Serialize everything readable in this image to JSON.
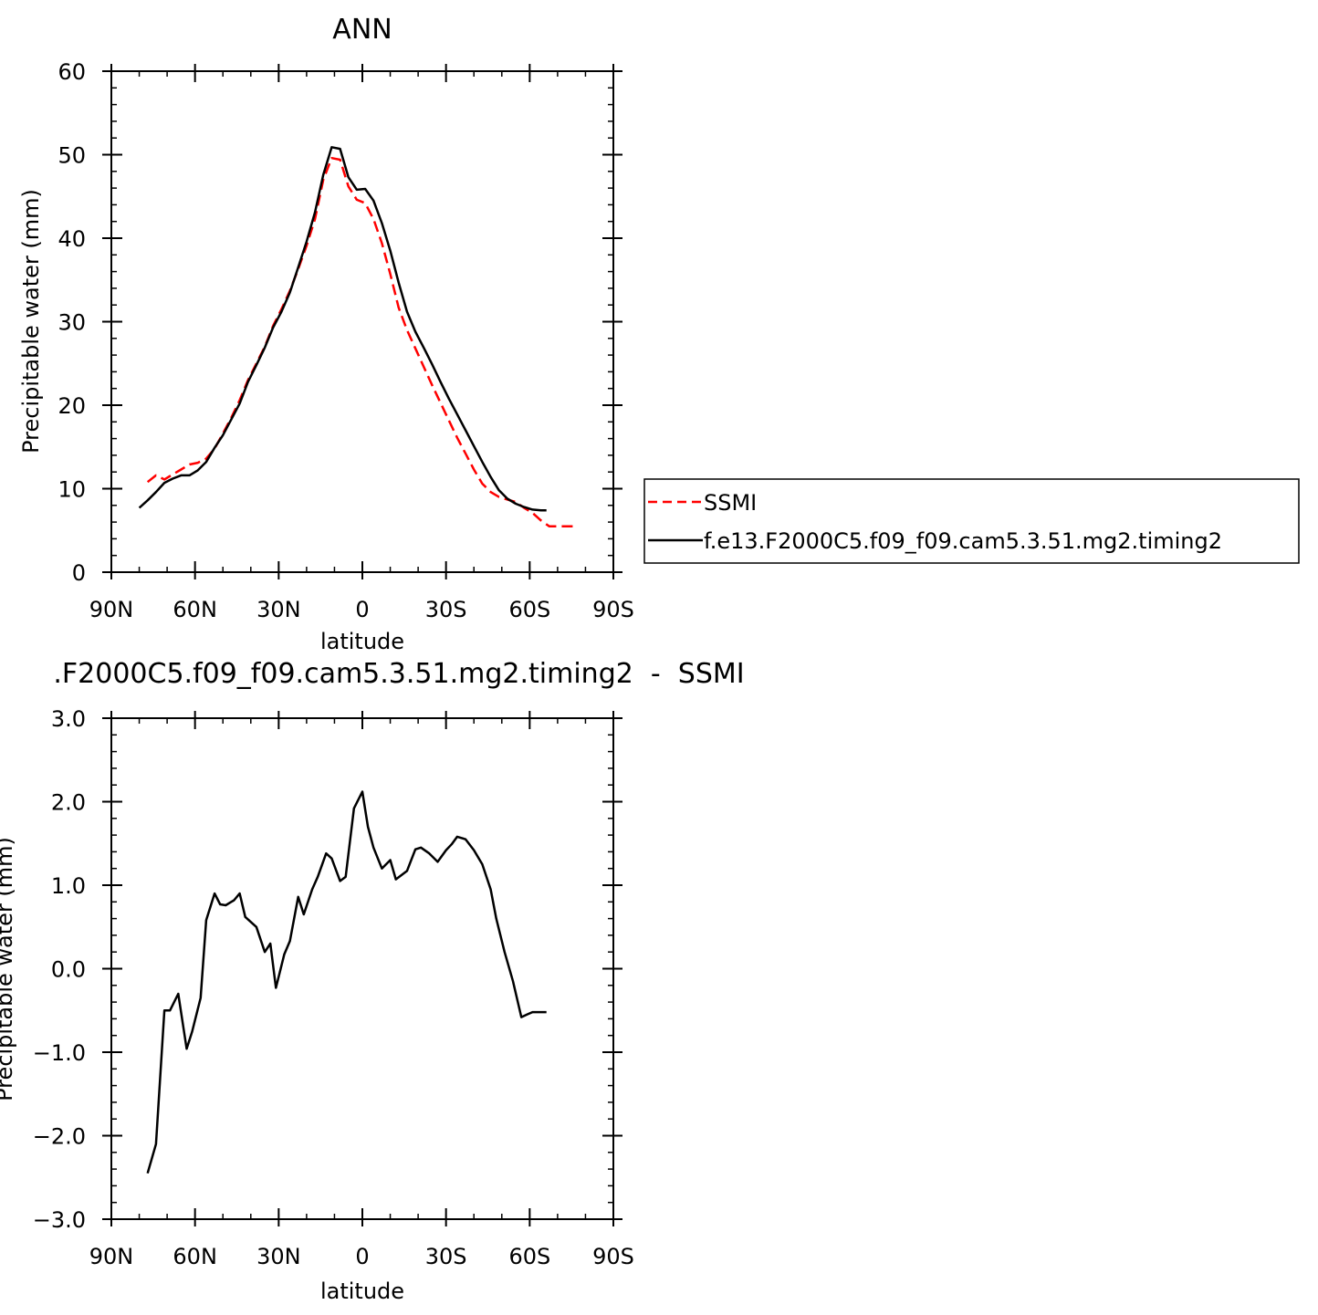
{
  "chart_data": [
    {
      "type": "line",
      "title": "ANN",
      "xlabel": "latitude",
      "ylabel": "Precipitable water (mm)",
      "xlim": [
        90,
        -90
      ],
      "ylim": [
        0,
        60
      ],
      "xticks": [
        90,
        60,
        30,
        0,
        -30,
        -60,
        -90
      ],
      "xticklabels": [
        "90N",
        "60N",
        "30N",
        "0",
        "30S",
        "60S",
        "90S"
      ],
      "yticks": [
        0,
        10,
        20,
        30,
        40,
        50,
        60
      ],
      "yticklabels": [
        "0",
        "10",
        "20",
        "30",
        "40",
        "50",
        "60"
      ],
      "grid": false,
      "legend": "right",
      "series": [
        {
          "name": "SSMI",
          "color": "#ff0000",
          "dash": "dashed",
          "x": [
            77,
            74,
            71,
            68,
            65,
            62,
            59,
            56,
            53,
            50,
            47,
            44,
            41,
            38,
            35,
            32,
            29,
            26,
            23,
            20,
            17,
            14,
            11,
            8,
            5,
            2,
            -1,
            -4,
            -7,
            -10,
            -13,
            -16,
            -19,
            -22,
            -25,
            -28,
            -31,
            -34,
            -37,
            -40,
            -43,
            -46,
            -49,
            -52,
            -55,
            -58,
            -61,
            -64,
            -67,
            -70,
            -73,
            -76
          ],
          "y": [
            10.8,
            11.6,
            11.1,
            11.7,
            12.3,
            12.9,
            13.1,
            13.6,
            14.8,
            16.6,
            18.5,
            20.6,
            23.0,
            25.0,
            27.0,
            29.5,
            31.5,
            33.7,
            36.3,
            39.1,
            42.3,
            47.0,
            49.6,
            49.4,
            46.2,
            44.6,
            44.2,
            42.3,
            39.4,
            35.7,
            31.7,
            29.0,
            26.8,
            24.6,
            22.4,
            20.3,
            18.2,
            16.1,
            14.2,
            12.3,
            10.6,
            9.6,
            9.0,
            8.7,
            8.4,
            7.7,
            7.1,
            6.2,
            5.5,
            5.5,
            5.5,
            5.5
          ]
        },
        {
          "name": "f.e13.F2000C5.f09_f09.cam5.3.51.mg2.timing2",
          "color": "#000000",
          "dash": "solid",
          "x": [
            80,
            77,
            74,
            71,
            68,
            65,
            62,
            59,
            56,
            53,
            50,
            47,
            44,
            41,
            38,
            35,
            32,
            29,
            26,
            23,
            20,
            17,
            14,
            11,
            8,
            5,
            2,
            -1,
            -4,
            -7,
            -10,
            -13,
            -16,
            -19,
            -22,
            -25,
            -28,
            -31,
            -34,
            -37,
            -40,
            -43,
            -46,
            -49,
            -52,
            -55,
            -58,
            -61,
            -64,
            -66
          ],
          "y": [
            7.7,
            8.6,
            9.6,
            10.7,
            11.2,
            11.6,
            11.6,
            12.2,
            13.2,
            14.9,
            16.4,
            18.3,
            20.2,
            22.8,
            24.8,
            26.9,
            29.3,
            31.2,
            33.5,
            36.5,
            39.6,
            43.1,
            47.6,
            50.9,
            50.7,
            47.3,
            45.8,
            45.9,
            44.5,
            41.8,
            38.5,
            34.7,
            31.2,
            28.8,
            26.9,
            24.9,
            22.8,
            20.8,
            18.9,
            17.0,
            15.1,
            13.2,
            11.4,
            9.8,
            8.8,
            8.2,
            7.8,
            7.5,
            7.4,
            7.4
          ]
        }
      ]
    },
    {
      "type": "line",
      "title": ".F2000C5.f09_f09.cam5.3.51.mg2.timing2  -  SSMI",
      "xlabel": "latitude",
      "ylabel": "Precipitable water (mm)",
      "xlim": [
        90,
        -90
      ],
      "ylim": [
        -3.0,
        3.0
      ],
      "xticks": [
        90,
        60,
        30,
        0,
        -30,
        -60,
        -90
      ],
      "xticklabels": [
        "90N",
        "60N",
        "30N",
        "0",
        "30S",
        "60S",
        "90S"
      ],
      "yticks": [
        -3.0,
        -2.0,
        -1.0,
        0.0,
        1.0,
        2.0,
        3.0
      ],
      "yticklabels": [
        "−3.0",
        "−2.0",
        "−1.0",
        "0.0",
        "1.0",
        "2.0",
        "3.0"
      ],
      "grid": false,
      "series": [
        {
          "color": "#000000",
          "dash": "solid",
          "x": [
            77,
            74,
            71,
            69,
            66,
            63,
            61,
            58,
            56,
            53,
            51,
            49,
            46,
            44,
            42,
            40,
            38,
            35,
            33,
            31,
            28,
            26,
            23,
            21,
            18,
            16,
            13,
            11,
            8,
            6,
            3,
            0,
            -2,
            -4,
            -7,
            -10,
            -12,
            -16,
            -19,
            -21,
            -24,
            -27,
            -30,
            -32,
            -34,
            -37,
            -40,
            -43,
            -46,
            -48,
            -51,
            -54,
            -57,
            -59,
            -61,
            -64,
            -66
          ],
          "y": [
            -2.45,
            -2.1,
            -0.5,
            -0.5,
            -0.3,
            -0.96,
            -0.75,
            -0.35,
            0.58,
            0.9,
            0.77,
            0.76,
            0.82,
            0.9,
            0.62,
            0.56,
            0.5,
            0.2,
            0.3,
            -0.23,
            0.17,
            0.33,
            0.86,
            0.65,
            0.95,
            1.1,
            1.38,
            1.32,
            1.05,
            1.1,
            1.92,
            2.12,
            1.7,
            1.45,
            1.2,
            1.3,
            1.07,
            1.17,
            1.43,
            1.45,
            1.38,
            1.28,
            1.42,
            1.49,
            1.58,
            1.55,
            1.42,
            1.25,
            0.95,
            0.6,
            0.2,
            -0.15,
            -0.58,
            -0.55,
            -0.52,
            -0.52,
            -0.52
          ]
        }
      ]
    }
  ]
}
